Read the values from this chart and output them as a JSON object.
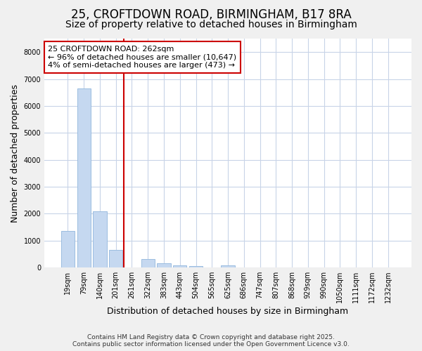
{
  "title": "25, CROFTDOWN ROAD, BIRMINGHAM, B17 8RA",
  "subtitle": "Size of property relative to detached houses in Birmingham",
  "xlabel": "Distribution of detached houses by size in Birmingham",
  "ylabel": "Number of detached properties",
  "bar_color": "#c5d8f0",
  "bar_edge_color": "#9bbde0",
  "grid_color": "#c8d4e8",
  "background_color": "#f0f0f0",
  "plot_bg_color": "#ffffff",
  "categories": [
    "19sqm",
    "79sqm",
    "140sqm",
    "201sqm",
    "261sqm",
    "322sqm",
    "383sqm",
    "443sqm",
    "504sqm",
    "565sqm",
    "625sqm",
    "686sqm",
    "747sqm",
    "807sqm",
    "868sqm",
    "929sqm",
    "990sqm",
    "1050sqm",
    "1111sqm",
    "1172sqm",
    "1232sqm"
  ],
  "values": [
    1350,
    6650,
    2100,
    650,
    0,
    320,
    150,
    80,
    60,
    5,
    80,
    0,
    0,
    0,
    0,
    0,
    0,
    0,
    0,
    0,
    0
  ],
  "vline_x": 3.5,
  "vline_color": "#cc0000",
  "annotation_text": "25 CROFTDOWN ROAD: 262sqm\n← 96% of detached houses are smaller (10,647)\n4% of semi-detached houses are larger (473) →",
  "annotation_box_color": "#ffffff",
  "annotation_box_edge": "#cc0000",
  "ylim": [
    0,
    8500
  ],
  "yticks": [
    0,
    1000,
    2000,
    3000,
    4000,
    5000,
    6000,
    7000,
    8000
  ],
  "footer_line1": "Contains HM Land Registry data © Crown copyright and database right 2025.",
  "footer_line2": "Contains public sector information licensed under the Open Government Licence v3.0.",
  "title_fontsize": 12,
  "subtitle_fontsize": 10,
  "axis_label_fontsize": 9,
  "tick_fontsize": 7,
  "annotation_fontsize": 8,
  "footer_fontsize": 6.5
}
